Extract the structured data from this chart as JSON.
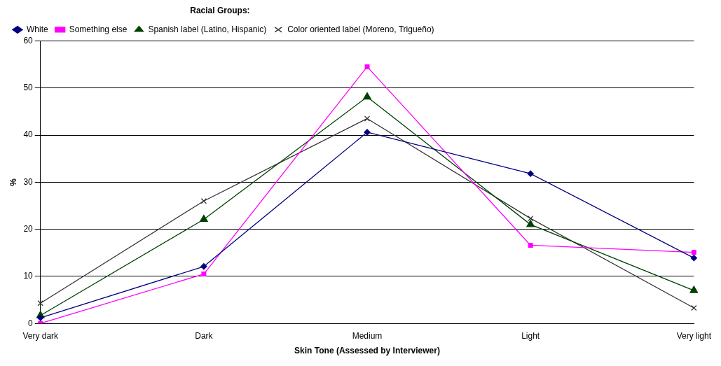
{
  "chart_data": {
    "type": "line",
    "xlabel": "Skin Tone (Assessed by Interviewer)",
    "ylabel": "%",
    "legend_title": "Racial Groups:",
    "legend": "top left",
    "grid": "y",
    "categories": [
      "Very dark",
      "Dark",
      "Medium",
      "Light",
      "Very light"
    ],
    "ylim": [
      0,
      60
    ],
    "yticks": [
      0,
      10,
      20,
      30,
      40,
      50,
      60
    ],
    "series": [
      {
        "name": "White",
        "color": "#000080",
        "marker": "diamond",
        "values": [
          1.2,
          12.1,
          40.6,
          31.8,
          13.9
        ]
      },
      {
        "name": "Something else",
        "color": "#ff00ff",
        "marker": "square",
        "values": [
          0,
          10.5,
          54.5,
          16.6,
          15.1
        ]
      },
      {
        "name": "Spanish label (Latino, Hispanic)",
        "color": "#004000",
        "marker": "triangle",
        "values": [
          1.7,
          22.1,
          48.1,
          21,
          7
        ]
      },
      {
        "name": "Color oriented label (Moreno, Trigueño)",
        "color": "#333333",
        "marker": "cross",
        "values": [
          4.3,
          26,
          43.5,
          22.3,
          3.3
        ]
      }
    ]
  }
}
